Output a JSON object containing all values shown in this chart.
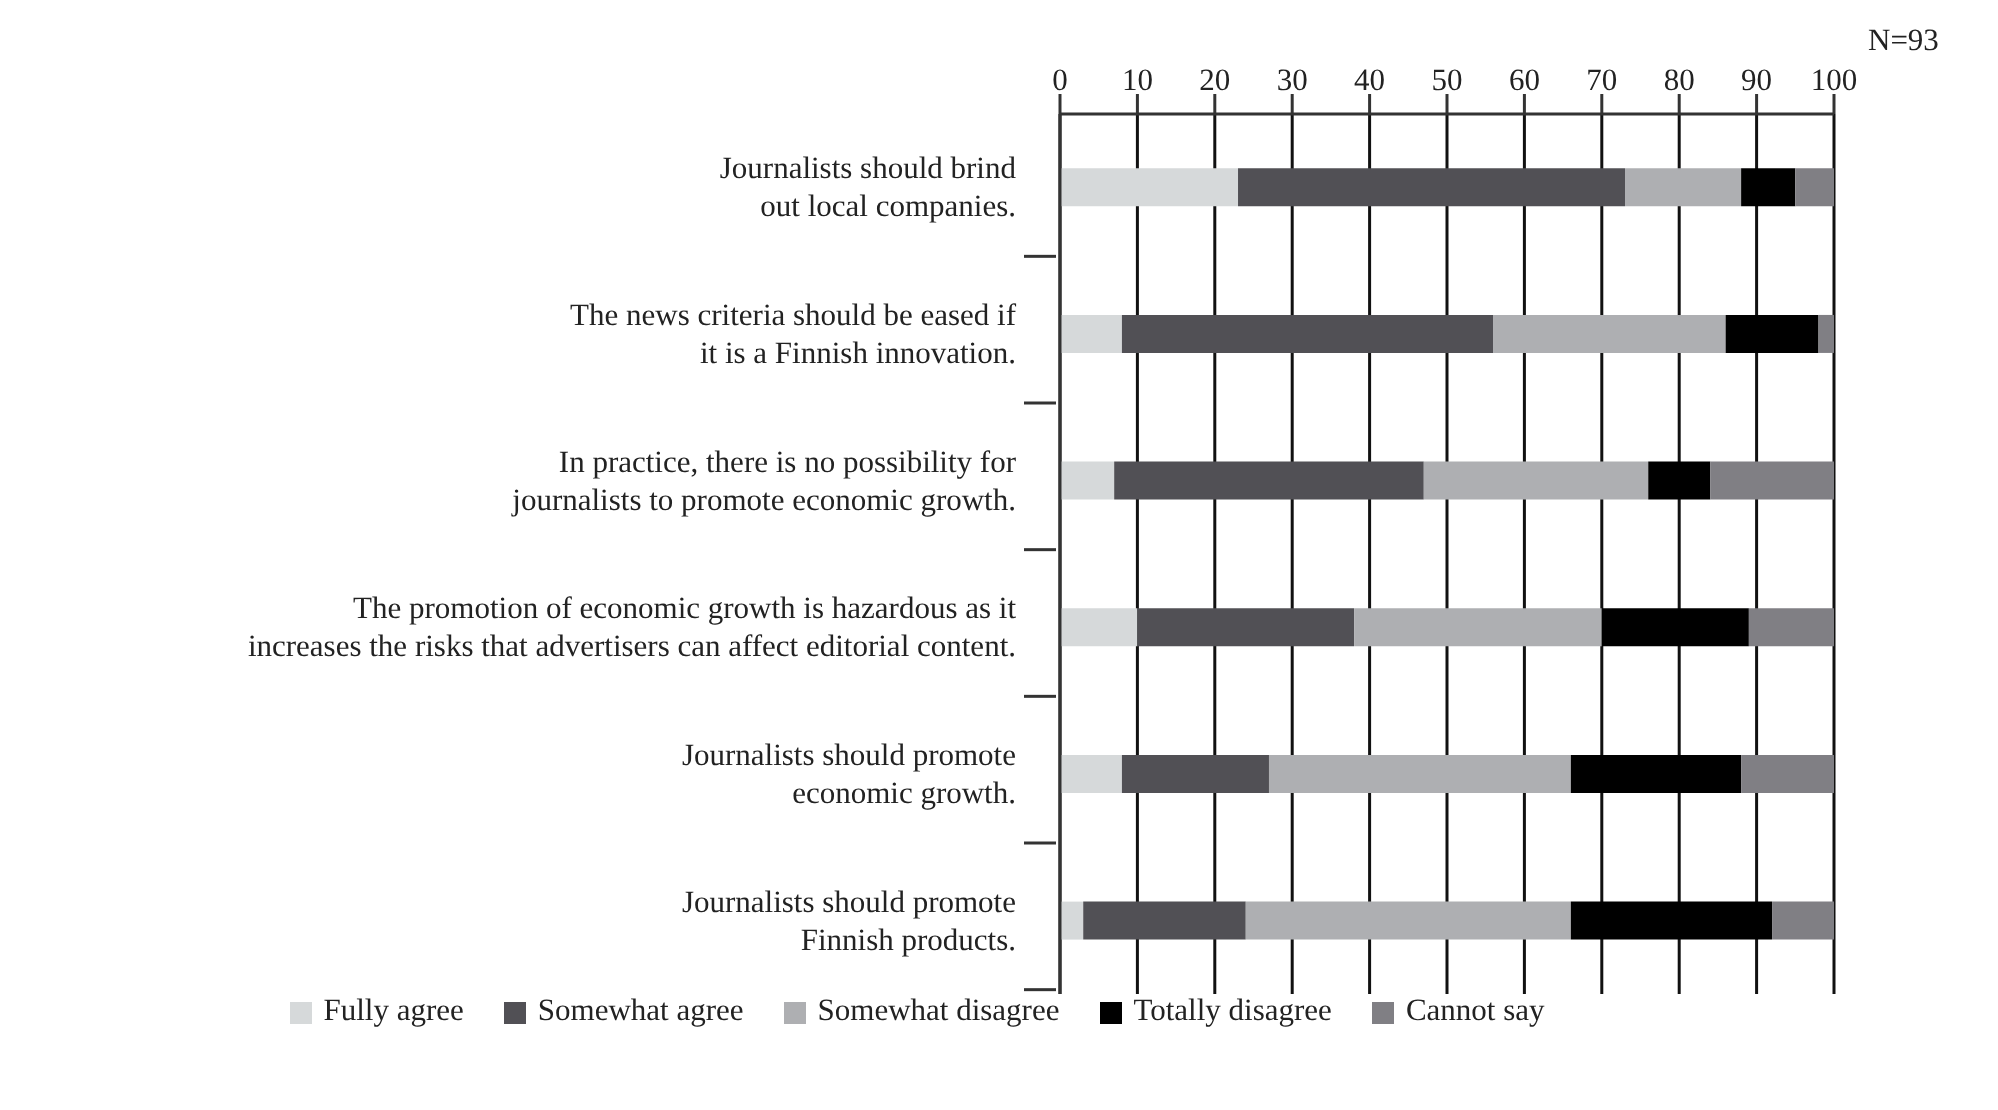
{
  "chart_data": {
    "type": "bar",
    "orientation": "horizontal",
    "stacked": true,
    "categories": [
      "Journalists should brind\nout local companies.",
      "The news criteria should be eased if\nit is a Finnish innovation.",
      "In practice, there is no possibility for\njournalists to promote economic growth.",
      "The promotion of economic growth is hazardous as it\nincreases the risks that advertisers can affect editorial content.",
      "Journalists should promote\neconomic growth.",
      "Journalists should promote\nFinnish products."
    ],
    "series": [
      {
        "name": "Fully agree",
        "color": "#d6d9da",
        "values": [
          23,
          8,
          7,
          10,
          8,
          3
        ]
      },
      {
        "name": "Somewhat agree",
        "color": "#515055",
        "values": [
          50,
          48,
          40,
          28,
          19,
          21
        ]
      },
      {
        "name": "Somewhat disagree",
        "color": "#aeafb2",
        "values": [
          15,
          30,
          29,
          32,
          39,
          42
        ]
      },
      {
        "name": "Totally disagree",
        "color": "#000000",
        "values": [
          7,
          12,
          8,
          19,
          22,
          26
        ]
      },
      {
        "name": "Cannot say",
        "color": "#807f84",
        "values": [
          5,
          2,
          16,
          11,
          12,
          8
        ]
      }
    ],
    "xlim": [
      0,
      100
    ],
    "xticks": [
      0,
      10,
      20,
      30,
      40,
      50,
      60,
      70,
      80,
      90,
      100
    ],
    "annotations": [
      "N=93"
    ],
    "grid": "x",
    "legend": "bottom"
  }
}
